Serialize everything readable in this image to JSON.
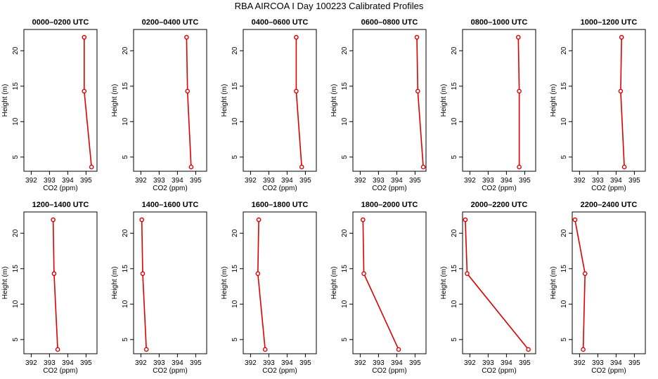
{
  "page_title": "RBA AIRCOA I  Day 100223  Calibrated Profiles",
  "colors": {
    "line": "#dd0000",
    "axis": "#000000",
    "background": "#ffffff"
  },
  "chart_data": [
    {
      "type": "line",
      "title": "0000–0200 UTC",
      "xlabel": "CO2 (ppm)",
      "ylabel": "Height (m)",
      "xlim": [
        391.6,
        395.6
      ],
      "ylim": [
        3,
        23
      ],
      "xticks": [
        392,
        393,
        394,
        395
      ],
      "yticks": [
        5,
        10,
        15,
        20
      ],
      "series": [
        {
          "x": [
            394.9,
            394.9,
            395.3
          ],
          "y": [
            21.9,
            14.3,
            3.6
          ]
        }
      ]
    },
    {
      "type": "line",
      "title": "0200–0400 UTC",
      "xlabel": "CO2 (ppm)",
      "ylabel": "Height (m)",
      "xlim": [
        391.6,
        395.6
      ],
      "ylim": [
        3,
        23
      ],
      "xticks": [
        392,
        393,
        394,
        395
      ],
      "yticks": [
        5,
        10,
        15,
        20
      ],
      "series": [
        {
          "x": [
            394.5,
            394.55,
            394.75
          ],
          "y": [
            21.9,
            14.3,
            3.6
          ]
        }
      ]
    },
    {
      "type": "line",
      "title": "0400–0600 UTC",
      "xlabel": "CO2 (ppm)",
      "ylabel": "Height (m)",
      "xlim": [
        391.6,
        395.6
      ],
      "ylim": [
        3,
        23
      ],
      "xticks": [
        392,
        393,
        394,
        395
      ],
      "yticks": [
        5,
        10,
        15,
        20
      ],
      "series": [
        {
          "x": [
            394.5,
            394.5,
            394.8
          ],
          "y": [
            21.9,
            14.3,
            3.6
          ]
        }
      ]
    },
    {
      "type": "line",
      "title": "0600–0800 UTC",
      "xlabel": "CO2 (ppm)",
      "ylabel": "Height (m)",
      "xlim": [
        391.6,
        395.6
      ],
      "ylim": [
        3,
        23
      ],
      "xticks": [
        392,
        393,
        394,
        395
      ],
      "yticks": [
        5,
        10,
        15,
        20
      ],
      "series": [
        {
          "x": [
            395.1,
            395.15,
            395.45
          ],
          "y": [
            21.9,
            14.3,
            3.6
          ]
        }
      ]
    },
    {
      "type": "line",
      "title": "0800–1000 UTC",
      "xlabel": "CO2 (ppm)",
      "ylabel": "Height (m)",
      "xlim": [
        391.6,
        395.6
      ],
      "ylim": [
        3,
        23
      ],
      "xticks": [
        392,
        393,
        394,
        395
      ],
      "yticks": [
        5,
        10,
        15,
        20
      ],
      "series": [
        {
          "x": [
            394.65,
            394.7,
            394.7
          ],
          "y": [
            21.9,
            14.3,
            3.6
          ]
        }
      ]
    },
    {
      "type": "line",
      "title": "1000–1200 UTC",
      "xlabel": "CO2 (ppm)",
      "ylabel": "Height (m)",
      "xlim": [
        391.6,
        395.6
      ],
      "ylim": [
        3,
        23
      ],
      "xticks": [
        392,
        393,
        394,
        395
      ],
      "yticks": [
        5,
        10,
        15,
        20
      ],
      "series": [
        {
          "x": [
            394.3,
            394.25,
            394.45
          ],
          "y": [
            21.9,
            14.3,
            3.6
          ]
        }
      ]
    },
    {
      "type": "line",
      "title": "1200–1400 UTC",
      "xlabel": "CO2 (ppm)",
      "ylabel": "Height (m)",
      "xlim": [
        391.6,
        395.6
      ],
      "ylim": [
        3,
        23
      ],
      "xticks": [
        392,
        393,
        394,
        395
      ],
      "yticks": [
        5,
        10,
        15,
        20
      ],
      "series": [
        {
          "x": [
            393.2,
            393.25,
            393.45
          ],
          "y": [
            21.9,
            14.3,
            3.6
          ]
        }
      ]
    },
    {
      "type": "line",
      "title": "1400–1600 UTC",
      "xlabel": "CO2 (ppm)",
      "ylabel": "Height (m)",
      "xlim": [
        391.6,
        395.6
      ],
      "ylim": [
        3,
        23
      ],
      "xticks": [
        392,
        393,
        394,
        395
      ],
      "yticks": [
        5,
        10,
        15,
        20
      ],
      "series": [
        {
          "x": [
            392.05,
            392.1,
            392.3
          ],
          "y": [
            21.9,
            14.3,
            3.6
          ]
        }
      ]
    },
    {
      "type": "line",
      "title": "1600–1800 UTC",
      "xlabel": "CO2 (ppm)",
      "ylabel": "Height (m)",
      "xlim": [
        391.6,
        395.6
      ],
      "ylim": [
        3,
        23
      ],
      "xticks": [
        392,
        393,
        394,
        395
      ],
      "yticks": [
        5,
        10,
        15,
        20
      ],
      "series": [
        {
          "x": [
            392.45,
            392.4,
            392.8
          ],
          "y": [
            21.9,
            14.3,
            3.6
          ]
        }
      ]
    },
    {
      "type": "line",
      "title": "1800–2000 UTC",
      "xlabel": "CO2 (ppm)",
      "ylabel": "Height (m)",
      "xlim": [
        391.6,
        395.6
      ],
      "ylim": [
        3,
        23
      ],
      "xticks": [
        392,
        393,
        394,
        395
      ],
      "yticks": [
        5,
        10,
        15,
        20
      ],
      "series": [
        {
          "x": [
            392.15,
            392.2,
            394.1
          ],
          "y": [
            21.9,
            14.3,
            3.6
          ]
        }
      ]
    },
    {
      "type": "line",
      "title": "2000–2200 UTC",
      "xlabel": "CO2 (ppm)",
      "ylabel": "Height (m)",
      "xlim": [
        391.6,
        395.6
      ],
      "ylim": [
        3,
        23
      ],
      "xticks": [
        392,
        393,
        394,
        395
      ],
      "yticks": [
        5,
        10,
        15,
        20
      ],
      "series": [
        {
          "x": [
            391.75,
            391.85,
            395.2
          ],
          "y": [
            21.9,
            14.3,
            3.6
          ]
        }
      ]
    },
    {
      "type": "line",
      "title": "2200–2400 UTC",
      "xlabel": "CO2 (ppm)",
      "ylabel": "Height (m)",
      "xlim": [
        391.6,
        395.6
      ],
      "ylim": [
        3,
        23
      ],
      "xticks": [
        392,
        393,
        394,
        395
      ],
      "yticks": [
        5,
        10,
        15,
        20
      ],
      "series": [
        {
          "x": [
            391.75,
            392.3,
            392.2
          ],
          "y": [
            21.9,
            14.3,
            3.6
          ]
        }
      ]
    }
  ]
}
